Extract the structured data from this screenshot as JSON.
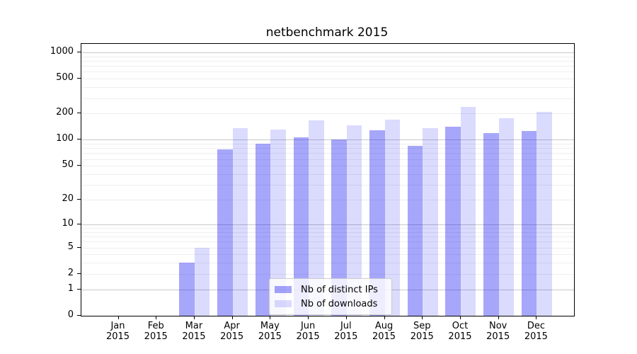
{
  "chart_data": {
    "type": "bar",
    "title": "netbenchmark 2015",
    "categories": [
      "Jan 2015",
      "Feb 2015",
      "Mar 2015",
      "Apr 2015",
      "May 2015",
      "Jun 2015",
      "Jul 2015",
      "Aug 2015",
      "Sep 2015",
      "Oct 2015",
      "Nov 2015",
      "Dec 2015"
    ],
    "series": [
      {
        "name": "Nb of distinct IPs",
        "color": "#0000F059",
        "values": [
          0,
          0,
          3,
          78,
          91,
          107,
          101,
          128,
          86,
          141,
          119,
          127
        ]
      },
      {
        "name": "Nb of downloads",
        "color": "#0000F024",
        "values": [
          0,
          0,
          5,
          137,
          130,
          167,
          148,
          170,
          135,
          238,
          177,
          210
        ]
      }
    ],
    "xlabel": "",
    "ylabel": "",
    "yscale": "log1p",
    "yticks": [
      0,
      1,
      2,
      5,
      10,
      20,
      50,
      100,
      200,
      500,
      1000
    ],
    "ylim": [
      0,
      1250
    ],
    "grid": "horizontal",
    "grid_colors": {
      "major": "#C9C9C9",
      "minor": "#EEEEEE"
    },
    "legend_position": "lower center inside plot"
  }
}
